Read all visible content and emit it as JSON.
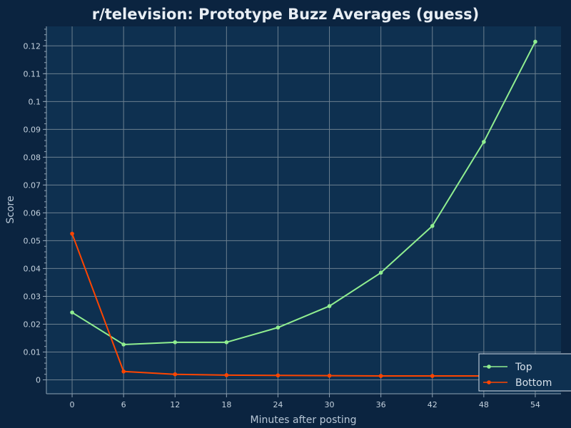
{
  "chart_data": {
    "type": "line",
    "title": "r/television: Prototype Buzz Averages (guess)",
    "xlabel": "Minutes after posting",
    "ylabel": "Score",
    "x": [
      0,
      6,
      12,
      18,
      24,
      30,
      36,
      42,
      48,
      54
    ],
    "x_ticks": [
      "0",
      "6",
      "12",
      "18",
      "24",
      "30",
      "36",
      "42",
      "48",
      "54"
    ],
    "xlim": [
      -3,
      57
    ],
    "ylim": [
      -0.005,
      0.127
    ],
    "y_ticks": [
      0,
      0.01,
      0.02,
      0.03,
      0.04,
      0.05,
      0.06,
      0.07,
      0.08,
      0.09,
      0.1,
      0.11,
      0.12
    ],
    "y_tick_labels": [
      "0",
      "0.01",
      "0.02",
      "0.03",
      "0.04",
      "0.05",
      "0.06",
      "0.07",
      "0.08",
      "0.09",
      "0.1",
      "0.11",
      "0.12"
    ],
    "grid": true,
    "legend_position": "bottom-right",
    "series": [
      {
        "name": "Top",
        "color": "#90ee90",
        "values": [
          0.0242,
          0.0127,
          0.0135,
          0.0135,
          0.0188,
          0.0265,
          0.0385,
          0.0553,
          0.0855,
          0.1215
        ]
      },
      {
        "name": "Bottom",
        "color": "#ff4500",
        "values": [
          0.0525,
          0.003,
          0.002,
          0.0017,
          0.0016,
          0.0015,
          0.0014,
          0.0014,
          0.0014,
          0.0014
        ]
      }
    ]
  },
  "theme": {
    "background": "#0b2440",
    "plot_background": "#0e3050",
    "grid_color": "#6b7f8f",
    "axis_color": "#8fa3b5"
  }
}
